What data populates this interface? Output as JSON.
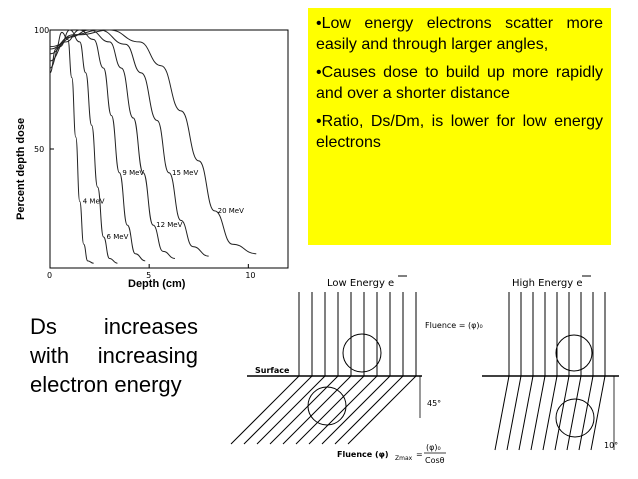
{
  "bullets": [
    "•Low energy electrons scatter more easily and through larger angles,",
    "•Causes dose to build up more rapidly and over a shorter distance",
    "•Ratio, Ds/Dm, is lower for low energy electrons"
  ],
  "side_text": "Ds increases with increasing electron energy",
  "chart_data": {
    "type": "line",
    "title": "",
    "xlabel": "Depth (cm)",
    "ylabel": "Percent depth dose",
    "xlim": [
      0,
      12
    ],
    "ylim": [
      0,
      100
    ],
    "x_ticks": [
      0,
      5,
      10
    ],
    "y_ticks": [
      50,
      100
    ],
    "grid": false,
    "legend": "inline-labels",
    "series": [
      {
        "name": "4 MeV",
        "x": [
          0,
          0.3,
          0.6,
          0.9,
          1.1,
          1.3,
          1.5,
          1.7,
          1.9,
          2.2
        ],
        "y": [
          82,
          92,
          99,
          96,
          80,
          55,
          28,
          10,
          3,
          2
        ]
      },
      {
        "name": "6 MeV",
        "x": [
          0,
          0.5,
          1.0,
          1.5,
          1.8,
          2.1,
          2.4,
          2.7,
          3.0,
          3.4
        ],
        "y": [
          84,
          93,
          100,
          95,
          82,
          60,
          34,
          13,
          4,
          2
        ]
      },
      {
        "name": "9 MeV",
        "x": [
          0,
          0.8,
          1.5,
          2.2,
          2.7,
          3.1,
          3.5,
          3.9,
          4.3,
          4.8
        ],
        "y": [
          87,
          95,
          100,
          96,
          84,
          64,
          40,
          18,
          6,
          3
        ]
      },
      {
        "name": "12 MeV",
        "x": [
          0,
          1.0,
          2.0,
          3.0,
          3.6,
          4.2,
          4.7,
          5.2,
          5.7,
          6.3
        ],
        "y": [
          90,
          97,
          100,
          95,
          84,
          63,
          40,
          18,
          7,
          4
        ]
      },
      {
        "name": "15 MeV",
        "x": [
          0,
          1.2,
          2.5,
          3.8,
          4.6,
          5.4,
          6.0,
          6.6,
          7.2,
          8.0
        ],
        "y": [
          92,
          98,
          100,
          94,
          82,
          62,
          40,
          20,
          9,
          5
        ]
      },
      {
        "name": "20 MeV",
        "x": [
          0,
          1.5,
          3.0,
          4.5,
          5.6,
          6.6,
          7.5,
          8.3,
          9.2,
          10.4
        ],
        "y": [
          93,
          98,
          100,
          95,
          85,
          66,
          45,
          24,
          10,
          6
        ]
      }
    ]
  },
  "diagram": {
    "low_title": "Low Energy e",
    "high_title": "High Energy e",
    "fluence_label": "Fluence = (φ)₀",
    "surface_label": "Surface",
    "angle_low": "45°",
    "angle_high": "10°",
    "formula_lhs": "Fluence (φ)",
    "formula_sub": "Zmax",
    "formula_num": "(φ)₀",
    "formula_den": "Cosθ",
    "formula_eq": "="
  }
}
